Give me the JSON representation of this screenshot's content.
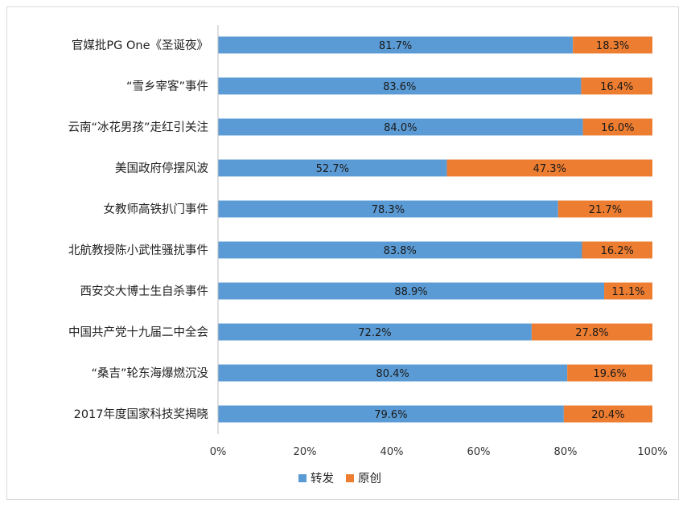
{
  "chart_data": {
    "type": "bar",
    "orientation": "horizontal",
    "stacked": true,
    "categories": [
      "官媒批PG One《圣诞夜》",
      "“雪乡宰客”事件",
      "云南“冰花男孩”走红引关注",
      "美国政府停摆风波",
      "女教师高铁扒门事件",
      "北航教授陈小武性骚扰事件",
      "西安交大博士生自杀事件",
      "中国共产党十九届二中全会",
      "“桑吉”轮东海爆燃沉没",
      "2017年度国家科技奖揭晓"
    ],
    "series": [
      {
        "name": "转发",
        "color": "#5b9bd5",
        "values": [
          81.7,
          83.6,
          84.0,
          52.7,
          78.3,
          83.8,
          88.9,
          72.2,
          80.4,
          79.6
        ],
        "labels": [
          "81.7%",
          "83.6%",
          "84.0%",
          "52.7%",
          "78.3%",
          "83.8%",
          "88.9%",
          "72.2%",
          "80.4%",
          "79.6%"
        ]
      },
      {
        "name": "原创",
        "color": "#ed7d31",
        "values": [
          18.3,
          16.4,
          16.0,
          47.3,
          21.7,
          16.2,
          11.1,
          27.8,
          19.6,
          20.4
        ],
        "labels": [
          "18.3%",
          "16.4%",
          "16.0%",
          "47.3%",
          "21.7%",
          "16.2%",
          "11.1%",
          "27.8%",
          "19.6%",
          "20.4%"
        ]
      }
    ],
    "x_ticks": [
      "0%",
      "20%",
      "40%",
      "60%",
      "80%",
      "100%"
    ],
    "xlim": [
      0,
      100
    ],
    "grid": false,
    "legend_position": "bottom"
  }
}
